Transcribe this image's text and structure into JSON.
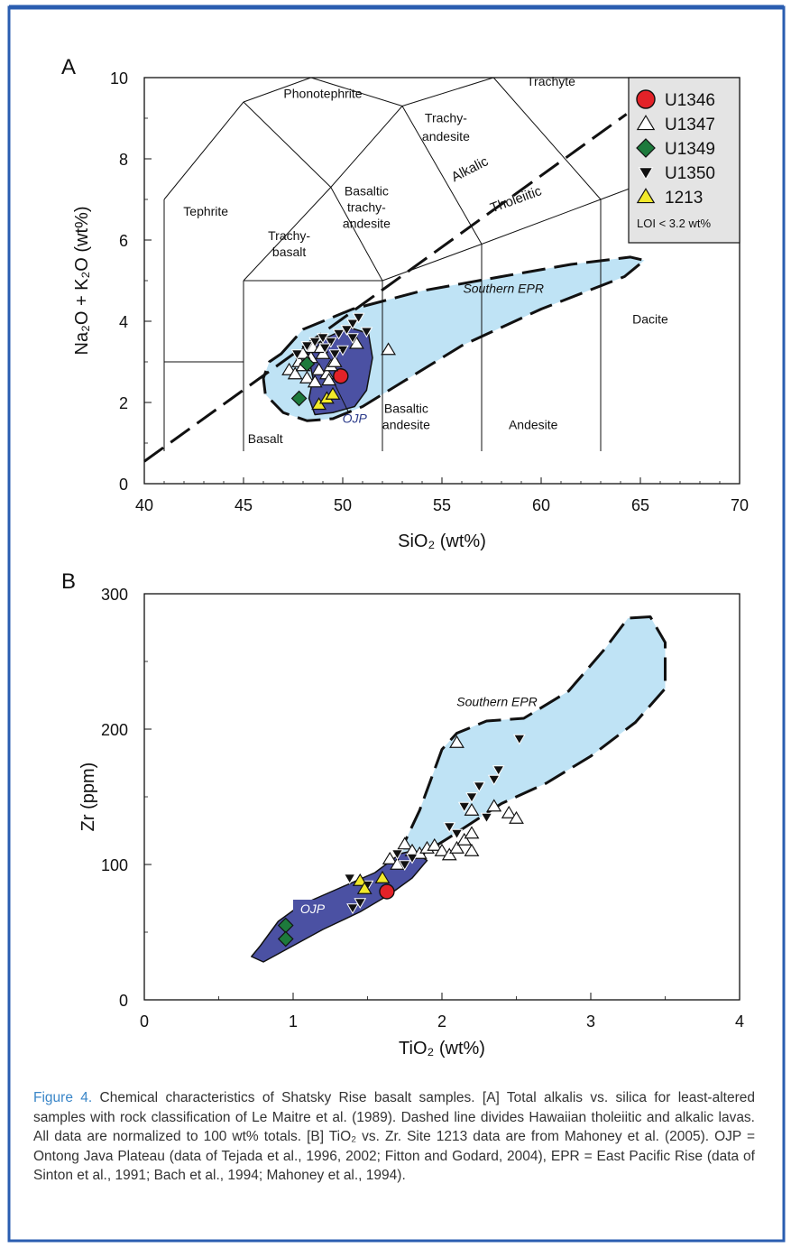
{
  "colors": {
    "frame": "#2a5db0",
    "epr_fill": "#bfe3f5",
    "ojp_fill": "#4b51a3",
    "u1346": "#e32228",
    "u1349": "#1d7a3c",
    "y1213": "#f2e92a",
    "legend_bg": "#e4e4e4",
    "caption_lead": "#3a86c8"
  },
  "caption": {
    "lead": "Figure 4.",
    "text": " Chemical characteristics of Shatsky Rise basalt samples. [A] Total alkalis vs. silica for least-altered samples with rock classification of Le Maitre et al. (1989). Dashed line divides Hawaiian tholeiitic and alkalic lavas. All data are normalized to 100 wt% totals. [B] TiO₂ vs. Zr. Site 1213 data are from Mahoney et al. (2005). OJP = Ontong Java Plateau (data of Tejada et al., 1996, 2002; Fitton and Godard, 2004), EPR = East Pacific Rise (data of Sinton et al., 1991; Bach et al., 1994; Mahoney et al., 1994)."
  },
  "chart_data": [
    {
      "type": "scatter",
      "panel_label": "A",
      "xlabel": "SiO₂ (wt%)",
      "ylabel": "Na₂O + K₂O (wt%)",
      "xlim": [
        40,
        70
      ],
      "ylim": [
        0,
        10
      ],
      "x_ticks": [
        "40",
        "45",
        "50",
        "55",
        "60",
        "65",
        "70"
      ],
      "y_ticks": [
        "0",
        "2",
        "4",
        "6",
        "8",
        "10"
      ],
      "field_labels": [
        "Phonotephrite",
        "Trachyte",
        "Trachy-",
        "andesite",
        "Tephrite",
        "Basaltic",
        "trachy-",
        "andesite",
        "Trachy-",
        "basalt",
        "Basalt",
        "Basaltic",
        "andesite",
        "Andesite",
        "Dacite",
        "Alkalic",
        "Tholeiitic",
        "Southern EPR",
        "OJP"
      ],
      "legend": {
        "entries": [
          "U1346",
          "U1347",
          "U1349",
          "U1350",
          "1213"
        ],
        "note": "LOI  < 3.2 wt%",
        "placement": "top-right"
      },
      "series": [
        {
          "name": "U1346",
          "marker": "circle",
          "points": [
            [
              49.9,
              2.65
            ]
          ]
        },
        {
          "name": "U1347",
          "marker": "triangle-open",
          "points": [
            [
              47.3,
              2.8
            ],
            [
              47.6,
              2.7
            ],
            [
              47.8,
              3.0
            ],
            [
              48.0,
              2.9
            ],
            [
              48.2,
              2.6
            ],
            [
              48.4,
              3.1
            ],
            [
              48.6,
              2.5
            ],
            [
              48.8,
              2.8
            ],
            [
              49.0,
              3.2
            ],
            [
              49.2,
              2.7
            ],
            [
              49.4,
              2.9
            ],
            [
              49.6,
              3.0
            ],
            [
              48.0,
              3.2
            ],
            [
              48.5,
              3.35
            ],
            [
              50.7,
              3.45
            ],
            [
              52.3,
              3.3
            ],
            [
              49.3,
              2.55
            ],
            [
              48.9,
              3.35
            ]
          ]
        },
        {
          "name": "U1349",
          "marker": "diamond",
          "points": [
            [
              48.2,
              2.95
            ],
            [
              47.8,
              2.1
            ]
          ]
        },
        {
          "name": "U1350",
          "marker": "triangle-down",
          "points": [
            [
              47.7,
              3.2
            ],
            [
              48.2,
              3.4
            ],
            [
              48.6,
              3.5
            ],
            [
              49.0,
              3.6
            ],
            [
              49.4,
              3.5
            ],
            [
              49.8,
              3.7
            ],
            [
              50.2,
              3.8
            ],
            [
              50.5,
              3.95
            ],
            [
              50.8,
              4.1
            ],
            [
              51.2,
              3.75
            ],
            [
              50.0,
              3.3
            ],
            [
              49.6,
              3.2
            ],
            [
              49.1,
              3.35
            ],
            [
              50.5,
              3.6
            ]
          ]
        },
        {
          "name": "1213",
          "marker": "triangle-yellow",
          "points": [
            [
              48.8,
              1.95
            ],
            [
              49.2,
              2.1
            ],
            [
              49.5,
              2.2
            ]
          ]
        }
      ]
    },
    {
      "type": "scatter",
      "panel_label": "B",
      "xlabel": "TiO₂ (wt%)",
      "ylabel": "Zr (ppm)",
      "xlim": [
        0,
        4
      ],
      "ylim": [
        0,
        300
      ],
      "x_ticks": [
        "0",
        "1",
        "2",
        "3",
        "4"
      ],
      "y_ticks": [
        "0",
        "100",
        "200",
        "300"
      ],
      "field_labels": [
        "Southern EPR",
        "OJP"
      ],
      "series": [
        {
          "name": "U1346",
          "marker": "circle",
          "points": [
            [
              1.63,
              80
            ]
          ]
        },
        {
          "name": "U1347",
          "marker": "triangle-open",
          "points": [
            [
              1.75,
              115
            ],
            [
              1.8,
              110
            ],
            [
              1.85,
              108
            ],
            [
              1.9,
              112
            ],
            [
              1.95,
              114
            ],
            [
              2.0,
              110
            ],
            [
              2.05,
              107
            ],
            [
              2.1,
              112
            ],
            [
              2.15,
              118
            ],
            [
              2.2,
              123
            ],
            [
              2.2,
              110
            ],
            [
              2.1,
              190
            ],
            [
              2.2,
              140
            ],
            [
              2.35,
              143
            ],
            [
              2.45,
              138
            ],
            [
              2.5,
              134
            ],
            [
              1.65,
              104
            ],
            [
              1.7,
              100
            ]
          ]
        },
        {
          "name": "U1349",
          "marker": "diamond",
          "points": [
            [
              0.95,
              55
            ],
            [
              0.95,
              45
            ]
          ]
        },
        {
          "name": "U1350",
          "marker": "triangle-down",
          "points": [
            [
              1.38,
              90
            ],
            [
              1.4,
              68
            ],
            [
              1.45,
              72
            ],
            [
              1.5,
              85
            ],
            [
              1.7,
              108
            ],
            [
              1.75,
              100
            ],
            [
              1.8,
              105
            ],
            [
              2.05,
              128
            ],
            [
              2.1,
              123
            ],
            [
              2.15,
              143
            ],
            [
              2.2,
              150
            ],
            [
              2.25,
              158
            ],
            [
              2.35,
              163
            ],
            [
              2.38,
              170
            ],
            [
              2.52,
              193
            ],
            [
              2.3,
              135
            ]
          ]
        },
        {
          "name": "1213",
          "marker": "triangle-yellow",
          "points": [
            [
              1.45,
              88
            ],
            [
              1.6,
              90
            ],
            [
              1.48,
              82
            ]
          ]
        }
      ]
    }
  ]
}
